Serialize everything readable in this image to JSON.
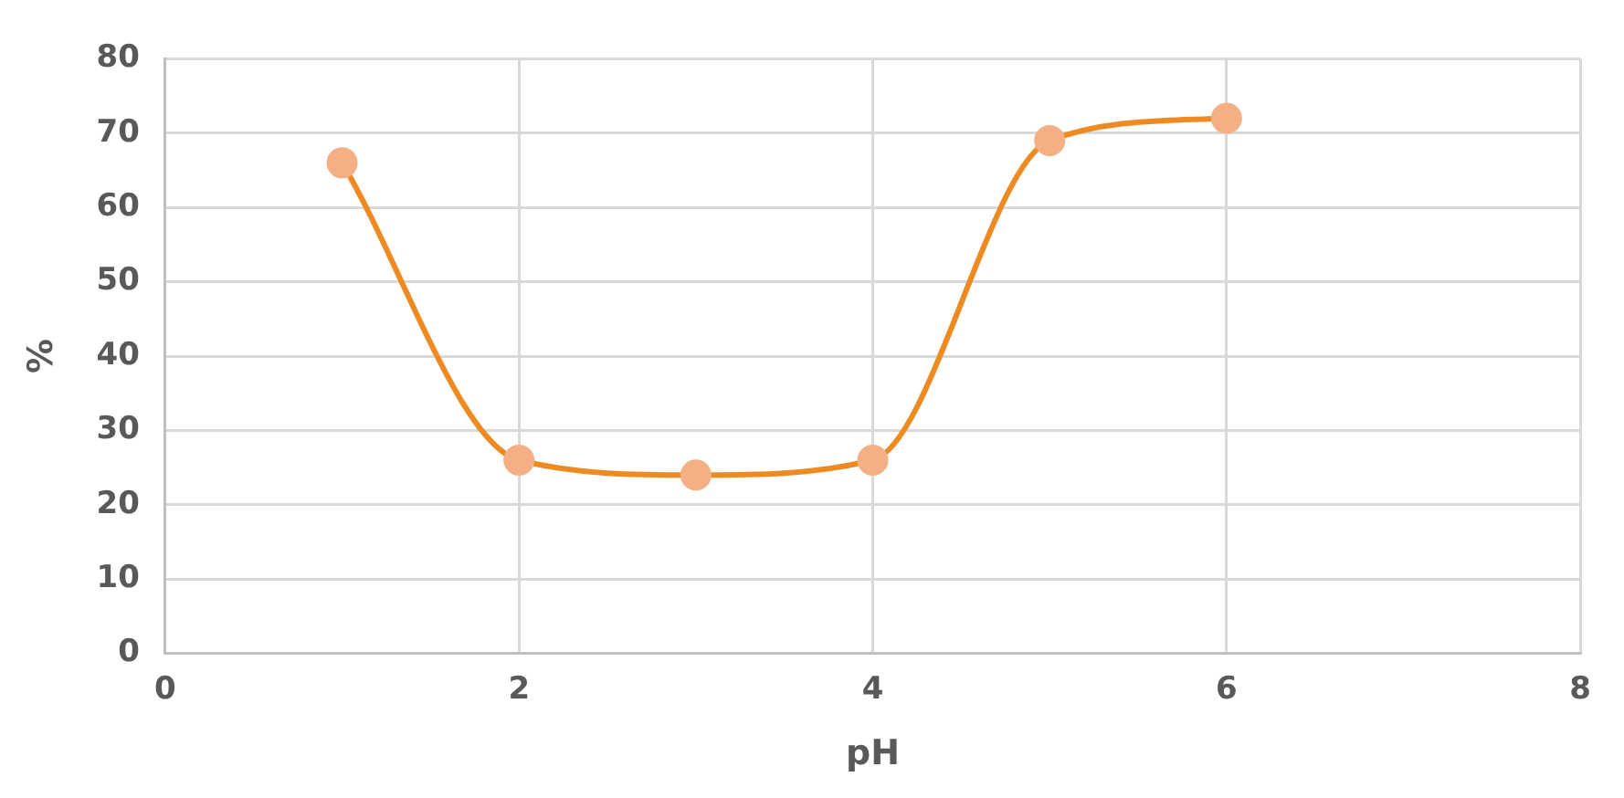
{
  "chart_data": {
    "type": "line",
    "xlabel": "pH",
    "ylabel": "%",
    "x": [
      1,
      2,
      3,
      4,
      5,
      6
    ],
    "series": [
      {
        "color": "#ee8a22",
        "colors": [
          "#f4b084",
          "#f4b084",
          "#f4b084",
          "#f4b084",
          "#f4b084",
          "#f4b084"
        ],
        "values": [
          66,
          26,
          24,
          26,
          69,
          72
        ]
      }
    ],
    "xlim": [
      0,
      8
    ],
    "xticks": [
      0,
      2,
      4,
      6,
      8
    ],
    "ylim": [
      0,
      80
    ],
    "yticks": [
      0,
      10,
      20,
      30,
      40,
      50,
      60,
      70,
      80
    ],
    "grid": true,
    "legend": false,
    "marker": "circle",
    "line_style": "solid"
  }
}
